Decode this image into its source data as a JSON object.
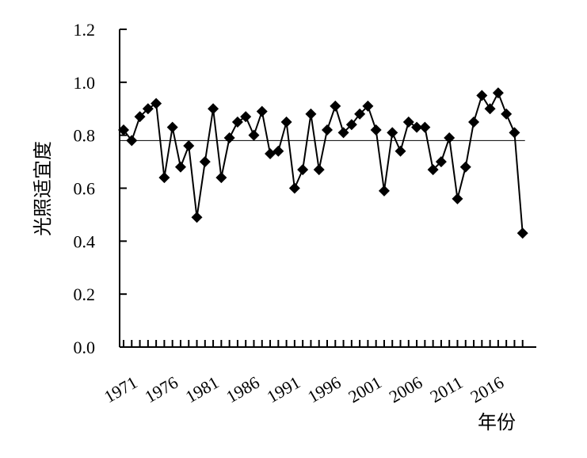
{
  "chart_data": {
    "type": "line",
    "xlabel": "年份",
    "ylabel": "光照适宜度",
    "ylim": [
      0,
      1.2
    ],
    "yticks": [
      "0.0",
      "0.2",
      "0.4",
      "0.6",
      "0.8",
      "1.0",
      "1.2"
    ],
    "xticks": [
      "1971",
      "1976",
      "1981",
      "1986",
      "1991",
      "1996",
      "2001",
      "2006",
      "2011",
      "2016"
    ],
    "x": [
      1971,
      1972,
      1973,
      1974,
      1975,
      1976,
      1977,
      1978,
      1979,
      1980,
      1981,
      1982,
      1983,
      1984,
      1985,
      1986,
      1987,
      1988,
      1989,
      1990,
      1991,
      1992,
      1993,
      1994,
      1995,
      1996,
      1997,
      1998,
      1999,
      2000,
      2001,
      2002,
      2003,
      2004,
      2005,
      2006,
      2007,
      2008,
      2009,
      2010,
      2011,
      2012,
      2013,
      2014,
      2015,
      2016,
      2017,
      2018,
      2019,
      2020
    ],
    "series": [
      {
        "values": [
          0.82,
          0.78,
          0.87,
          0.9,
          0.92,
          0.64,
          0.83,
          0.68,
          0.76,
          0.49,
          0.7,
          0.9,
          0.64,
          0.79,
          0.85,
          0.87,
          0.8,
          0.89,
          0.73,
          0.74,
          0.85,
          0.6,
          0.67,
          0.88,
          0.67,
          0.82,
          0.91,
          0.81,
          0.84,
          0.88,
          0.91,
          0.82,
          0.59,
          0.81,
          0.74,
          0.85,
          0.83,
          0.83,
          0.67,
          0.7,
          0.79,
          0.56,
          0.68,
          0.85,
          0.95,
          0.9,
          0.96,
          0.88,
          0.81,
          0.43
        ],
        "color": "#000000",
        "marker": "diamond"
      }
    ],
    "reference_line": {
      "y": 0.78,
      "color": "#000000"
    },
    "grid": false,
    "legend": "none"
  }
}
